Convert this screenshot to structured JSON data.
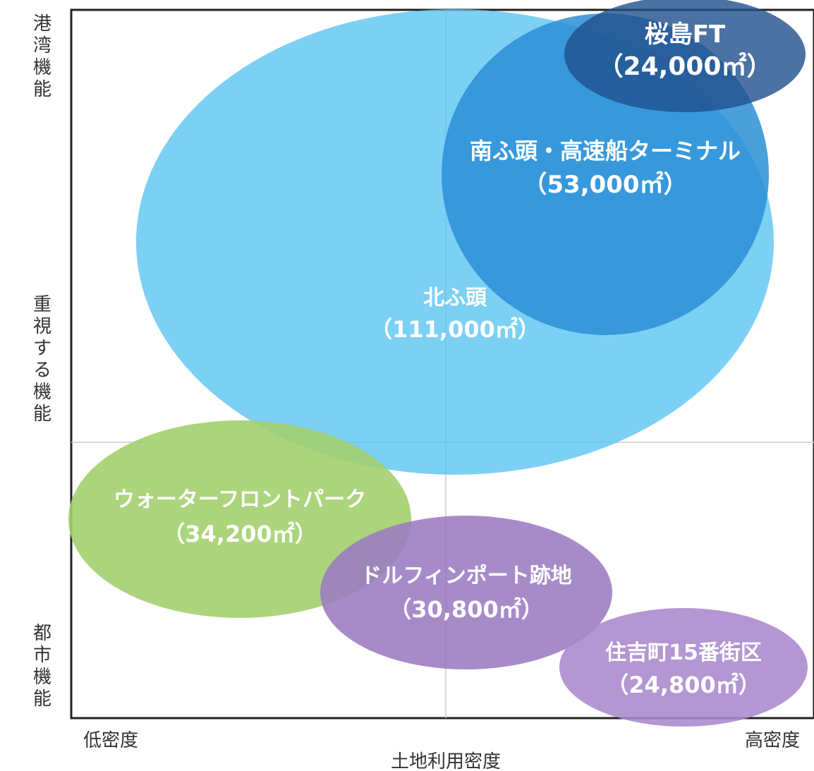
{
  "chart_data": {
    "type": "bubble",
    "xlabel": "土地利用密度",
    "x_tick_labels": {
      "low": "低密度",
      "high": "高密度"
    },
    "ylabel_parts": {
      "top": "港湾機能",
      "middle": "重視する機能",
      "bottom": "都市機能"
    },
    "grid": "center-divider",
    "bubbles": [
      {
        "name": "北ふ頭",
        "area_label": "（111,000㎡）",
        "area": 111000,
        "color": "#5bc4f1"
      },
      {
        "name": "南ふ頭・高速船ターミナル",
        "area_label": "（53,000㎡）",
        "area": 53000,
        "color": "#2b8fd6"
      },
      {
        "name": "桜島FT",
        "area_label": "（24,000㎡）",
        "area": 24000,
        "color": "#1f4f8c"
      },
      {
        "name": "ウォーターフロントパーク",
        "area_label": "（34,200㎡）",
        "area": 34200,
        "color": "#a3cf6e"
      },
      {
        "name": "ドルフィンポート跡地",
        "area_label": "（30,800㎡）",
        "area": 30800,
        "color": "#9b7bc0"
      },
      {
        "name": "住吉町15番街区",
        "area_label": "（24,800㎡）",
        "area": 24800,
        "color": "#a988cc"
      }
    ]
  }
}
